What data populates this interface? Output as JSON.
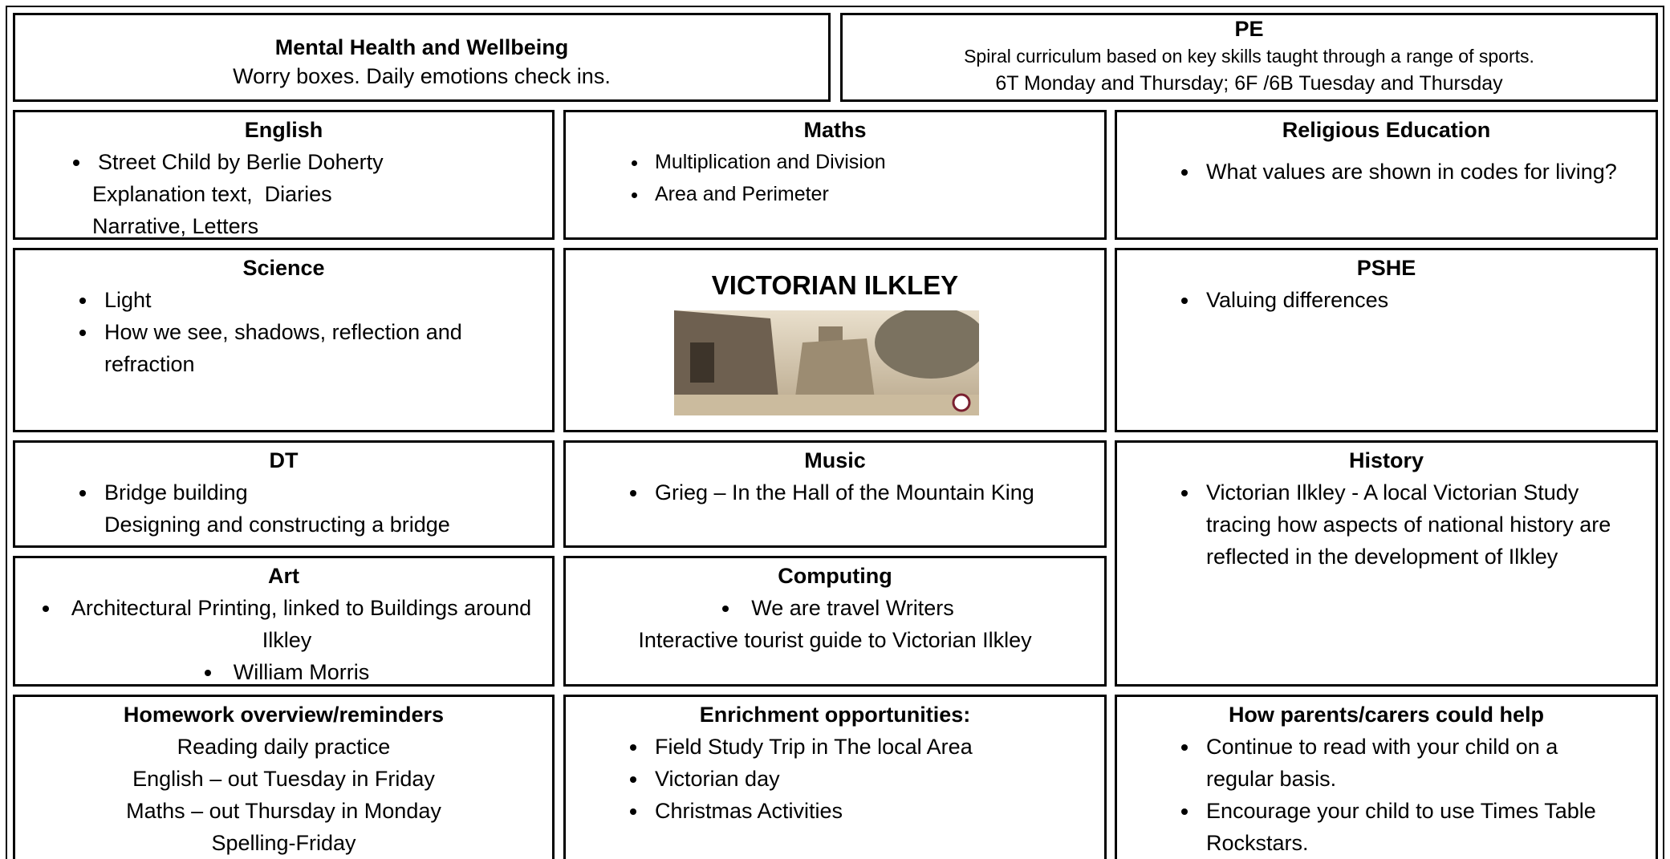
{
  "wellbeing": {
    "heading": "Mental Health and Wellbeing",
    "text": "Worry boxes. Daily emotions check ins."
  },
  "pe": {
    "heading": "PE",
    "lines": [
      "Spiral curriculum based on key skills taught through a range of sports.",
      "6T Monday and Thursday; 6F /6B Tuesday and Thursday"
    ]
  },
  "english": {
    "heading": "English",
    "bullets": [
      "Street Child by Berlie Doherty"
    ],
    "lines": [
      "Explanation text,  Diaries",
      "Narrative, Letters"
    ]
  },
  "maths": {
    "heading": "Maths",
    "bullets": [
      "Multiplication and Division",
      "Area and Perimeter"
    ]
  },
  "re": {
    "heading": "Religious Education",
    "bullets": [
      "What values are shown in codes for living?"
    ]
  },
  "science": {
    "heading": "Science",
    "bullets": [
      "Light",
      "How we see, shadows, reflection and refraction"
    ]
  },
  "topic": {
    "title": "VICTORIAN ILKLEY"
  },
  "pshe": {
    "heading": "PSHE",
    "bullets": [
      "Valuing differences"
    ]
  },
  "dt": {
    "heading": "DT",
    "bullets": [
      "Bridge building"
    ],
    "lines": [
      "Designing and constructing a bridge"
    ]
  },
  "music": {
    "heading": "Music",
    "bullets": [
      "Grieg – In the Hall of the Mountain King"
    ]
  },
  "history": {
    "heading": "History",
    "bullets": [
      "Victorian Ilkley - A local Victorian Study tracing how aspects of national history are reflected in the development of Ilkley"
    ]
  },
  "art": {
    "heading": "Art",
    "bullets": [
      "Architectural Printing, linked to Buildings around Ilkley",
      "William Morris"
    ]
  },
  "computing": {
    "heading": "Computing",
    "bullets": [
      "We are travel Writers"
    ],
    "lines": [
      "Interactive tourist guide to Victorian Ilkley"
    ]
  },
  "homework": {
    "heading": "Homework overview/reminders",
    "lines": [
      "Reading daily practice",
      "English – out Tuesday in Friday",
      "Maths – out Thursday in Monday",
      "Spelling-Friday"
    ]
  },
  "enrichment": {
    "heading": "Enrichment opportunities:",
    "bullets": [
      "Field Study Trip in The local Area",
      "Victorian day",
      "Christmas Activities"
    ]
  },
  "parents": {
    "heading": "How parents/carers could help",
    "bullets": [
      "Continue to read with your child on a regular basis.",
      "Encourage your child to use Times Table Rockstars."
    ]
  }
}
